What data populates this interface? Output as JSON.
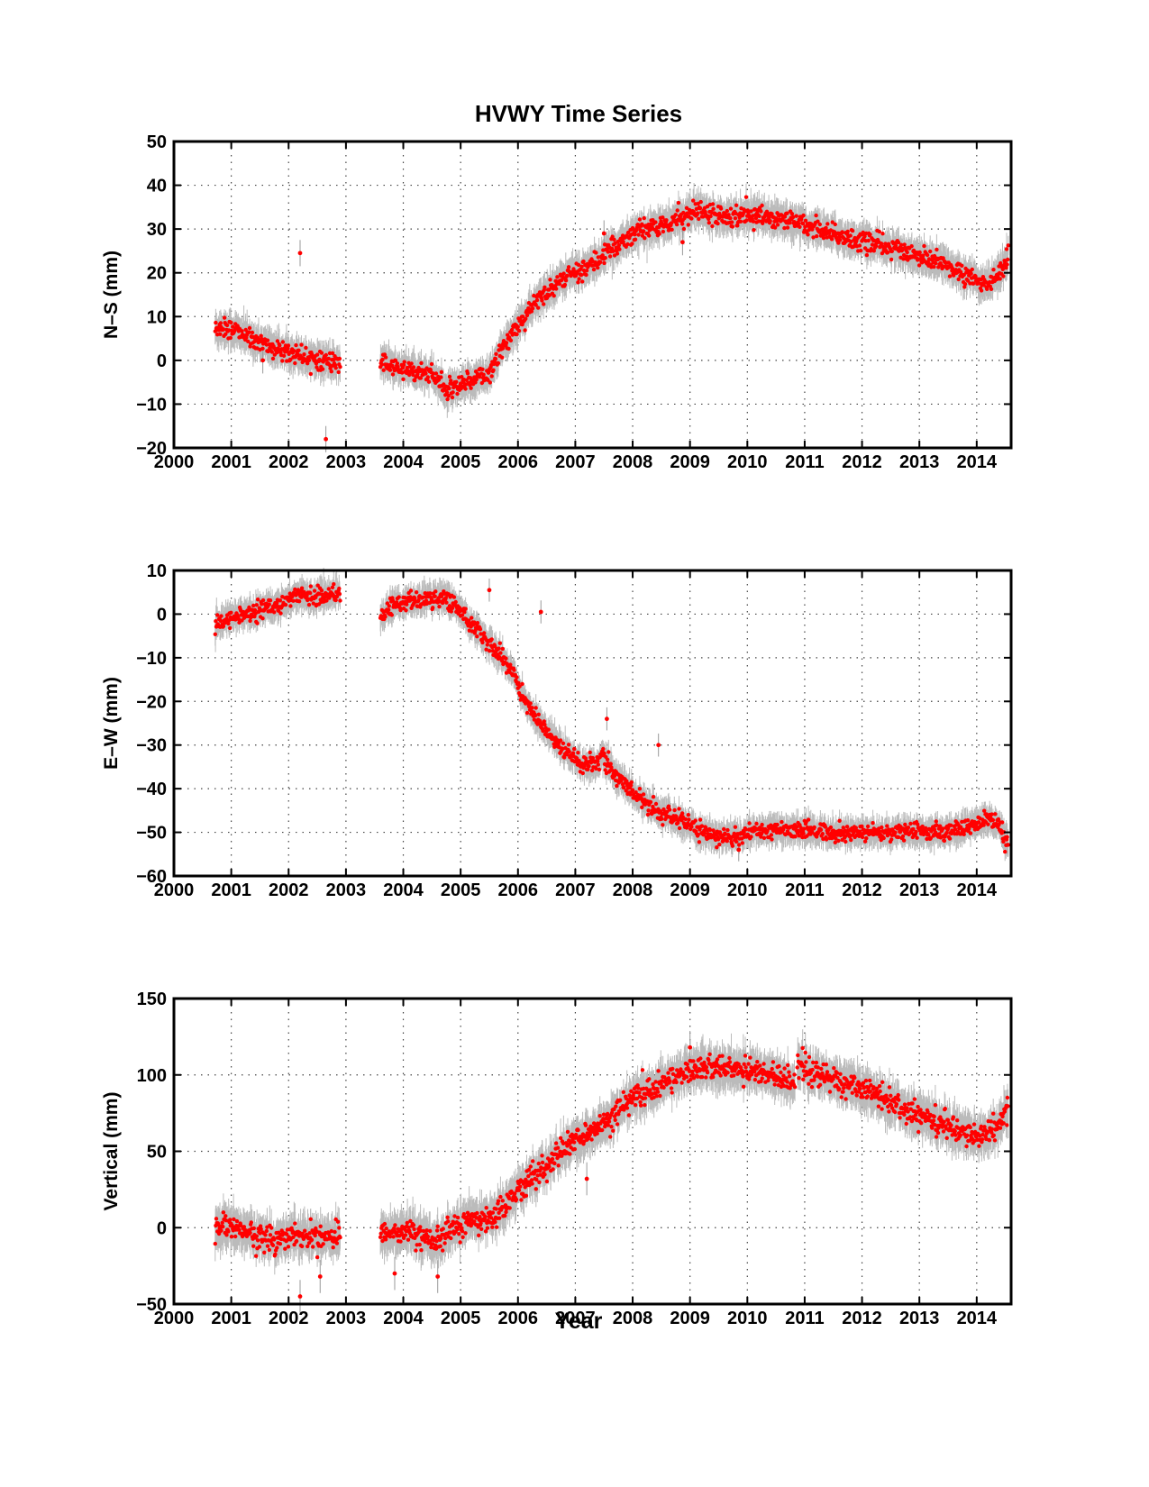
{
  "chart_data": {
    "type": "scatter",
    "title": "HVWY Time Series",
    "xlabel": "Year",
    "xlim": [
      2000,
      2014.6
    ],
    "xticks": [
      2000,
      2001,
      2002,
      2003,
      2004,
      2005,
      2006,
      2007,
      2008,
      2009,
      2010,
      2011,
      2012,
      2013,
      2014
    ],
    "grid": true,
    "marker_color": "#ff0000",
    "errorbar_color": "#bbbbbb",
    "panels": [
      {
        "id": "ns",
        "ylabel": "N–S (mm)",
        "ylim": [
          -20,
          50
        ],
        "yticks": [
          -20,
          -10,
          0,
          10,
          20,
          30,
          40,
          50
        ],
        "ytick_labels": [
          "−20",
          "−10",
          "0",
          "10",
          "20",
          "30",
          "40",
          "50"
        ],
        "error_mm": 2.5,
        "segments": [
          {
            "x": [
              2000.72,
              2000.9,
              2001.2,
              2001.5,
              2001.8,
              2002.0,
              2002.3,
              2002.6,
              2002.9
            ],
            "y": [
              7,
              7.5,
              6,
              4,
              2.5,
              2,
              1,
              0,
              -1
            ]
          },
          {
            "x": [
              2003.6,
              2003.9,
              2004.2,
              2004.5,
              2004.75,
              2005.0,
              2005.3,
              2005.5,
              2005.7,
              2006.0,
              2006.3,
              2006.6,
              2006.9,
              2007.2,
              2007.5,
              2007.8,
              2008.0,
              2008.3,
              2008.6,
              2008.9,
              2009.1,
              2009.4,
              2009.7,
              2010.0,
              2010.3,
              2010.6,
              2010.9,
              2011.2,
              2011.5,
              2011.8,
              2012.1,
              2012.4,
              2012.7,
              2013.0,
              2013.3,
              2013.6,
              2013.9,
              2014.05,
              2014.25,
              2014.45,
              2014.55
            ],
            "y": [
              0,
              -2,
              -2.5,
              -3,
              -7,
              -6,
              -4,
              -3,
              2,
              8,
              13,
              17,
              20,
              21,
              24,
              27,
              29,
              30,
              31,
              33,
              34.5,
              33.5,
              33,
              33.5,
              33,
              32,
              31,
              30.5,
              29,
              27.5,
              27,
              26,
              25,
              23.5,
              22.5,
              21,
              19,
              17.5,
              18,
              21,
              23.5
            ]
          }
        ],
        "outliers": [
          {
            "x": 2002.2,
            "y": 24.5
          },
          {
            "x": 2002.65,
            "y": -18
          },
          {
            "x": 2008.87,
            "y": 27
          },
          {
            "x": 2007.5,
            "y": 29
          },
          {
            "x": 2001.55,
            "y": 0
          }
        ]
      },
      {
        "id": "ew",
        "ylabel": "E–W (mm)",
        "ylim": [
          -60,
          10
        ],
        "yticks": [
          -60,
          -50,
          -40,
          -30,
          -20,
          -10,
          0,
          10
        ],
        "ytick_labels": [
          "−60",
          "−50",
          "−40",
          "−30",
          "−20",
          "−10",
          "0",
          "10"
        ],
        "error_mm": 2.2,
        "segments": [
          {
            "x": [
              2000.72,
              2000.9,
              2001.2,
              2001.5,
              2001.8,
              2002.1,
              2002.4,
              2002.7,
              2002.9
            ],
            "y": [
              -3,
              -1.5,
              0,
              1,
              2,
              4,
              4,
              4.5,
              5
            ]
          },
          {
            "x": [
              2003.6,
              2003.8,
              2004.1,
              2004.4,
              2004.7,
              2004.9,
              2005.1,
              2005.3,
              2005.6,
              2005.9,
              2006.1,
              2006.3,
              2006.6,
              2006.9,
              2007.1,
              2007.3,
              2007.5,
              2007.7,
              2008.0,
              2008.3,
              2008.6,
              2008.9,
              2009.2,
              2009.5,
              2009.8,
              2010.1,
              2010.5,
              2011.0,
              2011.5,
              2012.0,
              2012.5,
              2013.0,
              2013.5,
              2014.0,
              2014.2,
              2014.4,
              2014.55
            ],
            "y": [
              -1,
              2,
              3,
              3.5,
              4,
              2,
              -1,
              -4,
              -8,
              -13,
              -19,
              -24,
              -28,
              -32,
              -34,
              -34.5,
              -33,
              -37,
              -41,
              -44,
              -46,
              -48,
              -50,
              -51,
              -51,
              -50,
              -49.5,
              -49.5,
              -50,
              -50,
              -50,
              -50,
              -50,
              -48,
              -47,
              -49,
              -53
            ]
          }
        ],
        "outliers": [
          {
            "x": 2005.5,
            "y": 5.5
          },
          {
            "x": 2006.4,
            "y": 0.5
          },
          {
            "x": 2007.55,
            "y": -24
          },
          {
            "x": 2008.45,
            "y": -30
          },
          {
            "x": 2009.85,
            "y": -54
          }
        ]
      },
      {
        "id": "up",
        "ylabel": "Vertical (mm)",
        "ylim": [
          -50,
          150
        ],
        "yticks": [
          -50,
          0,
          50,
          100,
          150
        ],
        "ytick_labels": [
          "−50",
          "0",
          "50",
          "100",
          "150"
        ],
        "error_mm": 9,
        "segments": [
          {
            "x": [
              2000.72,
              2000.9,
              2001.2,
              2001.5,
              2001.8,
              2002.1,
              2002.4,
              2002.7,
              2002.9
            ],
            "y": [
              -3,
              0,
              -2,
              -6,
              -8,
              -4,
              -6,
              -5,
              -6
            ]
          },
          {
            "x": [
              2003.6,
              2003.8,
              2004.1,
              2004.4,
              2004.6,
              2004.8,
              2005.0,
              2005.3,
              2005.6,
              2005.9,
              2006.2,
              2006.5,
              2006.8,
              2007.1,
              2007.4,
              2007.7,
              2008.0,
              2008.3,
              2008.6,
              2008.9,
              2009.2,
              2009.5,
              2009.8,
              2010.1,
              2010.4,
              2010.6,
              2010.83
            ],
            "y": [
              -5,
              -3,
              -3,
              -6,
              -9,
              -3,
              2,
              5,
              8,
              20,
              32,
              40,
              52,
              58,
              65,
              75,
              85,
              90,
              96,
              102,
              106,
              104,
              104,
              103,
              100,
              97,
              96
            ]
          },
          {
            "x": [
              2010.87,
              2011.1,
              2011.4,
              2011.7,
              2012.0,
              2012.3,
              2012.6,
              2012.9,
              2013.2,
              2013.5,
              2013.8,
              2014.0,
              2014.2,
              2014.4,
              2014.55
            ],
            "y": [
              108,
              102,
              98,
              94,
              90,
              86,
              80,
              75,
              71,
              66,
              62,
              60,
              62,
              68,
              77
            ]
          }
        ],
        "outliers": [
          {
            "x": 2002.2,
            "y": -45
          },
          {
            "x": 2002.55,
            "y": -32
          },
          {
            "x": 2003.85,
            "y": -30
          },
          {
            "x": 2004.6,
            "y": -32
          },
          {
            "x": 2009.0,
            "y": 118
          },
          {
            "x": 2007.2,
            "y": 32
          }
        ]
      }
    ]
  }
}
